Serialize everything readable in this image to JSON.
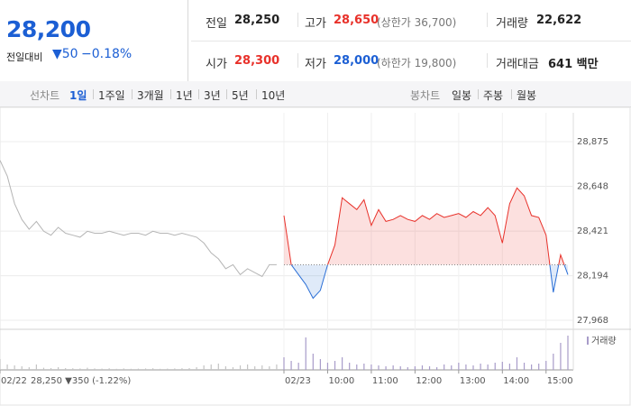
{
  "header": {
    "price": "28,200",
    "change_label": "전일대비",
    "change": "▼50",
    "change_pct": "−0.18%",
    "stats": [
      [
        {
          "label": "전일",
          "value": "28,250"
        },
        {
          "label": "고가",
          "value": "28,650",
          "note": "(상한가 36,700)"
        },
        {
          "label": "거래량",
          "value": "22,622"
        }
      ],
      [
        {
          "label": "시가",
          "value": "28,300"
        },
        {
          "label": "저가",
          "value": "28,000",
          "note": "(하한가 19,800)"
        },
        {
          "label": "거래대금",
          "value": "641 백만"
        }
      ]
    ]
  },
  "tabs": {
    "line_label": "선차트",
    "periods": [
      "1일",
      "1주일",
      "3개월",
      "1년",
      "3년",
      "5년",
      "10년"
    ],
    "candle_label": "봉차트",
    "candles": [
      "일봉",
      "주봉",
      "월봉"
    ]
  },
  "chart_data": {
    "type": "line",
    "baseline": 28250,
    "prev_day_summary": "28,250 ▼350 (-1.22%)",
    "volume_label": "거래량",
    "up_color": "#e8312a",
    "down_color": "#2b6fd6",
    "xlim": [
      -390,
      390
    ],
    "ylim": [
      27968,
      28875
    ],
    "vlim": [
      0,
      2000
    ],
    "grid": true,
    "xticks": [
      {
        "value": -390,
        "label": "02/22"
      },
      {
        "value": 0,
        "label": "02/23"
      },
      {
        "value": 60,
        "label": "10:00"
      },
      {
        "value": 120,
        "label": "11:00"
      },
      {
        "value": 180,
        "label": "12:00"
      },
      {
        "value": 240,
        "label": "13:00"
      },
      {
        "value": 300,
        "label": "14:00"
      },
      {
        "value": 360,
        "label": "15:00"
      }
    ],
    "yticks": [
      {
        "value": 27968,
        "label": "27,968"
      },
      {
        "value": 28194,
        "label": "28,194"
      },
      {
        "value": 28421,
        "label": "28,421"
      },
      {
        "value": 28648,
        "label": "28,648"
      },
      {
        "value": 28875,
        "label": "28,875"
      }
    ],
    "series": [
      {
        "color": "#b5b5b5",
        "volume_color": "#c4c4c4",
        "x": [
          -390,
          -380,
          -370,
          -360,
          -350,
          -340,
          -330,
          -320,
          -310,
          -300,
          -290,
          -280,
          -270,
          -260,
          -250,
          -240,
          -230,
          -220,
          -210,
          -200,
          -190,
          -180,
          -170,
          -160,
          -150,
          -140,
          -130,
          -120,
          -110,
          -100,
          -90,
          -80,
          -70,
          -60,
          -50,
          -40,
          -30,
          -20,
          -10
        ],
        "values": [
          28780,
          28700,
          28560,
          28480,
          28430,
          28470,
          28420,
          28400,
          28440,
          28410,
          28400,
          28390,
          28420,
          28410,
          28410,
          28420,
          28410,
          28400,
          28410,
          28410,
          28400,
          28420,
          28410,
          28410,
          28400,
          28410,
          28400,
          28390,
          28360,
          28310,
          28280,
          28230,
          28250,
          28200,
          28230,
          28210,
          28190,
          28250,
          28250
        ],
        "volume": [
          600,
          300,
          250,
          200,
          150,
          300,
          120,
          100,
          150,
          100,
          90,
          80,
          120,
          80,
          70,
          90,
          60,
          80,
          60,
          70,
          80,
          90,
          60,
          70,
          80,
          90,
          100,
          150,
          250,
          300,
          350,
          200,
          150,
          250,
          300,
          200,
          250,
          200,
          300
        ]
      },
      {
        "color": "#e8312a",
        "volume_color": "#a89cc9",
        "x": [
          0,
          10,
          20,
          30,
          40,
          50,
          60,
          70,
          80,
          90,
          100,
          110,
          120,
          130,
          140,
          150,
          160,
          170,
          180,
          190,
          200,
          210,
          220,
          230,
          240,
          250,
          260,
          270,
          280,
          290,
          300,
          310,
          320,
          330,
          340,
          350,
          360,
          370,
          380,
          390
        ],
        "values": [
          28500,
          28250,
          28200,
          28150,
          28080,
          28120,
          28250,
          28350,
          28590,
          28560,
          28530,
          28580,
          28450,
          28530,
          28470,
          28480,
          28500,
          28480,
          28470,
          28500,
          28480,
          28510,
          28490,
          28500,
          28510,
          28490,
          28520,
          28500,
          28540,
          28500,
          28360,
          28560,
          28640,
          28600,
          28500,
          28490,
          28400,
          28110,
          28300,
          28200
        ],
        "volume": [
          700,
          500,
          400,
          1800,
          900,
          600,
          400,
          500,
          700,
          400,
          300,
          350,
          300,
          250,
          200,
          250,
          200,
          150,
          200,
          250,
          200,
          150,
          300,
          250,
          400,
          300,
          250,
          350,
          300,
          400,
          450,
          350,
          700,
          400,
          300,
          350,
          500,
          900,
          1500,
          1900
        ]
      }
    ]
  }
}
